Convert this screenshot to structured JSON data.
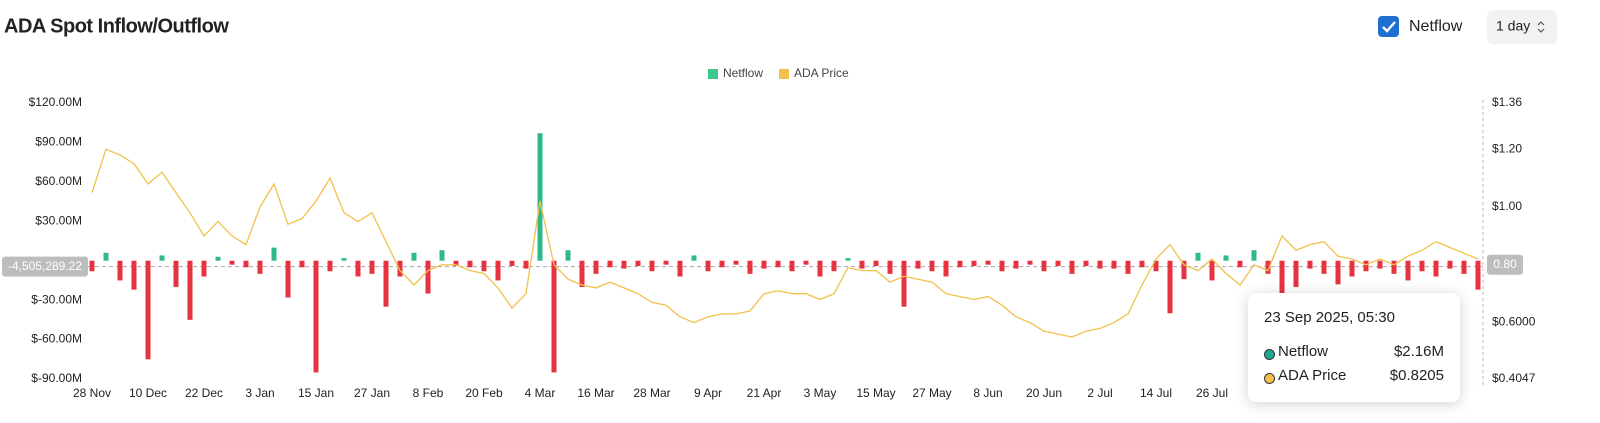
{
  "chart_data": {
    "type": "bar-line",
    "title": "ADA Spot Inflow/Outflow",
    "controls": {
      "checkbox_label": "Netflow",
      "interval": "1 day"
    },
    "categories": [
      "28 Nov",
      null,
      null,
      null,
      "10 Dec",
      null,
      null,
      null,
      "22 Dec",
      null,
      null,
      null,
      "3 Jan",
      null,
      null,
      null,
      "15 Jan",
      null,
      null,
      null,
      "27 Jan",
      null,
      null,
      null,
      "8 Feb",
      null,
      null,
      null,
      "20 Feb",
      null,
      null,
      null,
      "4 Mar",
      null,
      null,
      null,
      "16 Mar",
      null,
      null,
      null,
      "28 Mar",
      null,
      null,
      null,
      "9 Apr",
      null,
      null,
      null,
      "21 Apr",
      null,
      null,
      null,
      "3 May",
      null,
      null,
      null,
      "15 May",
      null,
      null,
      null,
      "27 May",
      null,
      null,
      null,
      "8 Jun",
      null,
      null,
      null,
      "20 Jun",
      null,
      null,
      null,
      "2 Jul",
      null,
      null,
      null,
      "14 Jul",
      null,
      null,
      null,
      "26 Jul",
      null,
      null,
      null,
      null,
      null,
      null,
      null,
      null,
      null,
      null,
      null,
      null,
      null,
      null,
      null,
      null,
      null,
      null,
      null
    ],
    "series": [
      {
        "name": "Netflow",
        "color": "#2fb88a",
        "negative_color": "#e5333f",
        "legend_color": "#3cc88c",
        "values": [
          -8,
          6,
          -15,
          -22,
          -75,
          4,
          -20,
          -45,
          -12,
          3,
          -3,
          -5,
          -10,
          10,
          -28,
          -5,
          -85,
          -8,
          2,
          -12,
          -10,
          -35,
          -12,
          6,
          -25,
          8,
          -4,
          -5,
          -8,
          -15,
          -4,
          -6,
          97,
          -85,
          8,
          -20,
          -10,
          -5,
          -6,
          -4,
          -8,
          -3,
          -12,
          4,
          -8,
          -5,
          -3,
          -10,
          -6,
          -5,
          -8,
          -3,
          -12,
          -8,
          2,
          -6,
          -4,
          -10,
          -35,
          -6,
          -8,
          -12,
          -5,
          -4,
          -3,
          -8,
          -6,
          -3,
          -8,
          -4,
          -10,
          -4,
          -6,
          -6,
          -10,
          -5,
          -8,
          -40,
          -14,
          6,
          -15,
          4,
          -5,
          8,
          -10,
          -28,
          -20,
          -6,
          -10,
          -18,
          -12,
          -8,
          -6,
          -10,
          -15,
          -8,
          -12,
          -6,
          -10,
          -22
        ]
      },
      {
        "name": "ADA Price",
        "color": "#f2c04c",
        "axis": "y2",
        "values": [
          1.05,
          1.2,
          1.18,
          1.15,
          1.08,
          1.12,
          1.05,
          0.98,
          0.9,
          0.95,
          0.9,
          0.87,
          1.0,
          1.08,
          0.94,
          0.96,
          1.02,
          1.1,
          0.98,
          0.95,
          0.98,
          0.88,
          0.78,
          0.73,
          0.78,
          0.8,
          0.8,
          0.78,
          0.77,
          0.72,
          0.65,
          0.7,
          1.02,
          0.8,
          0.75,
          0.73,
          0.72,
          0.74,
          0.72,
          0.7,
          0.67,
          0.66,
          0.62,
          0.6,
          0.62,
          0.63,
          0.63,
          0.64,
          0.7,
          0.71,
          0.7,
          0.7,
          0.68,
          0.7,
          0.79,
          0.78,
          0.78,
          0.74,
          0.76,
          0.75,
          0.74,
          0.7,
          0.69,
          0.68,
          0.69,
          0.66,
          0.62,
          0.6,
          0.57,
          0.56,
          0.55,
          0.57,
          0.58,
          0.6,
          0.63,
          0.73,
          0.82,
          0.87,
          0.8,
          0.78,
          0.82,
          0.77,
          0.73,
          0.8,
          0.78,
          0.9,
          0.85,
          0.87,
          0.88,
          0.83,
          0.82,
          0.8,
          0.82,
          0.8,
          0.83,
          0.85,
          0.88,
          0.86,
          0.84,
          0.82
        ]
      }
    ],
    "ylim": [
      -90,
      120
    ],
    "yticks": [
      {
        "value": 120,
        "label": "$120.00M"
      },
      {
        "value": 90,
        "label": "$90.00M"
      },
      {
        "value": 60,
        "label": "$60.00M"
      },
      {
        "value": 30,
        "label": "$30.00M"
      },
      {
        "value": -30,
        "label": "$-30.00M"
      },
      {
        "value": -60,
        "label": "$-60.00M"
      },
      {
        "value": -90,
        "label": "$-90.00M"
      }
    ],
    "y2lim": [
      0.4047,
      1.36
    ],
    "y2ticks": [
      {
        "value": 1.36,
        "label": "$1.36"
      },
      {
        "value": 1.2,
        "label": "$1.20"
      },
      {
        "value": 1,
        "label": "$1.00"
      },
      {
        "value": 0.6,
        "label": "$0.6000"
      },
      {
        "value": 0.4047,
        "label": "$0.4047"
      }
    ],
    "crosshair": {
      "value": -4.50528922,
      "label": "-4,505,289.22",
      "price_value": 0.8,
      "price_label": "0.80"
    },
    "tooltip": {
      "title": "23 Sep 2025, 05:30",
      "rows": [
        [
          "Netflow",
          "$2.16M"
        ],
        [
          "ADA Price",
          "$0.8205"
        ]
      ]
    }
  }
}
